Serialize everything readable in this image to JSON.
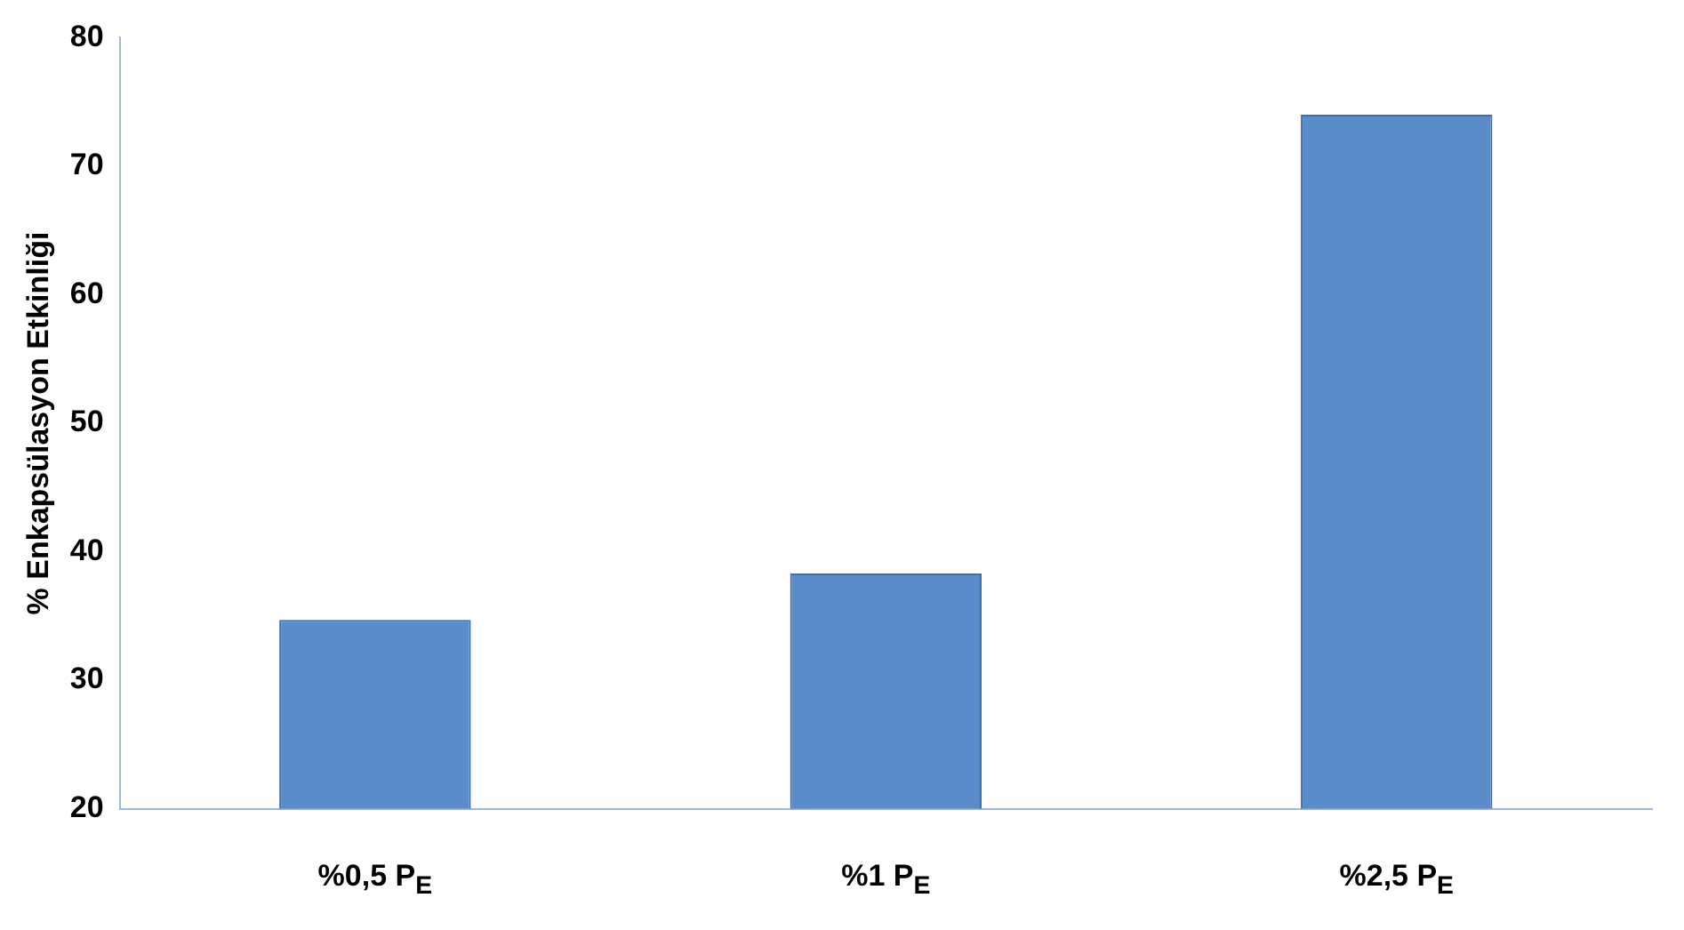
{
  "chart_data": {
    "type": "bar",
    "ylabel": "% Enkapsülasyon Etkinliği",
    "categories": [
      "%0,5 P$_{E}$",
      "%1 P$_{E}$",
      "%2,5 P$_{E}$"
    ],
    "values": [
      34.7,
      38.3,
      74.0
    ],
    "color": "#5a8ccc",
    "ylim": [
      20,
      80
    ],
    "yticks": [
      20,
      30,
      40,
      50,
      60,
      70,
      80
    ],
    "grid": false,
    "legend": false
  }
}
